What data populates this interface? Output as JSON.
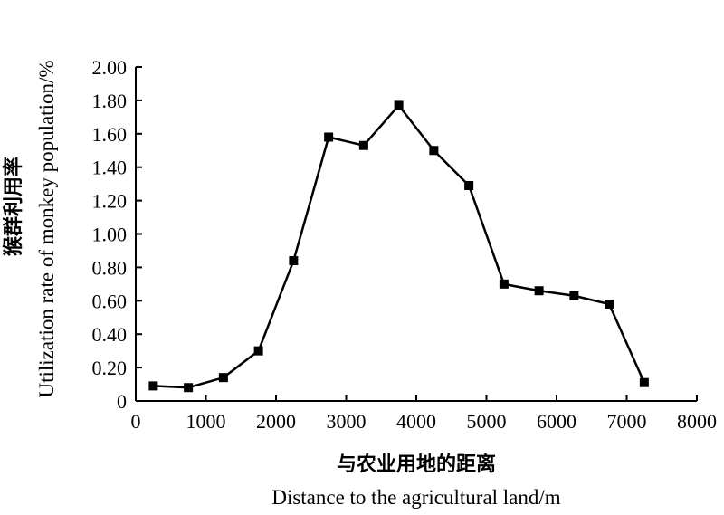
{
  "chart_data": {
    "type": "line",
    "title": "",
    "xlabel": "与农业用地的距离",
    "xlabel_en": "Distance to the agricultural land/m",
    "ylabel": "猴群利用率",
    "ylabel_en": "Utilization rate of monkey population/%",
    "xlim": [
      0,
      8000
    ],
    "ylim": [
      0,
      2.0
    ],
    "x_ticks": [
      "0",
      "1000",
      "2000",
      "3000",
      "4000",
      "5000",
      "6000",
      "7000",
      "8000"
    ],
    "y_ticks": [
      "0",
      "0.20",
      "0.40",
      "0.60",
      "0.80",
      "1.00",
      "1.20",
      "1.40",
      "1.60",
      "1.80",
      "2.00"
    ],
    "grid": false,
    "marker": "square",
    "line_color": "#000000",
    "series": [
      {
        "x": [
          250,
          750,
          1250,
          1750,
          2250,
          2750,
          3250,
          3750,
          4250,
          4750,
          5250,
          5750,
          6250,
          6750,
          7250
        ],
        "values": [
          0.09,
          0.08,
          0.14,
          0.3,
          0.84,
          1.58,
          1.53,
          1.77,
          1.5,
          1.29,
          0.7,
          0.66,
          0.63,
          0.58,
          0.11
        ]
      }
    ]
  }
}
